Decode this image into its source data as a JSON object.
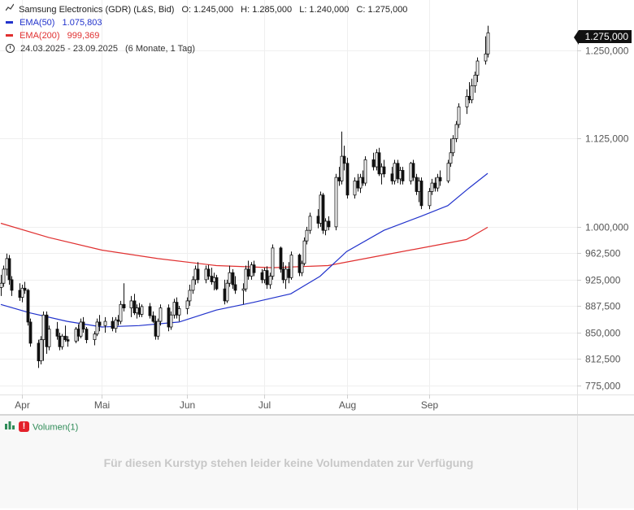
{
  "instrument": "Samsung Electronics (GDR) (L&S, Bid)",
  "ohlc": {
    "open": "O: 1.245,000",
    "high": "H: 1.285,000",
    "low": "L: 1.240,000",
    "close": "C: 1.275,000"
  },
  "ema50": {
    "label": "EMA(50)",
    "value": "1.075,803",
    "color": "#2233cc"
  },
  "ema200": {
    "label": "EMA(200)",
    "value": "999,369",
    "color": "#e03030"
  },
  "period": {
    "range": "24.03.2025 - 23.09.2025",
    "detail": "(6 Monate, 1 Tag)"
  },
  "last_price_tag": "1.275,000",
  "volume_panel": {
    "label": "Volumen(1)",
    "message": "Für diesen Kurstyp stehen leider keine Volumendaten zur Verfügung"
  },
  "chart_data": {
    "type": "candlestick",
    "y_axis": {
      "min": 760000,
      "max": 1300000,
      "ticks": [
        "1.250,000",
        "1.125,000",
        "1.000,000",
        "962,500",
        "925,000",
        "887,500",
        "850,000",
        "812,500",
        "775,000"
      ],
      "tick_values": [
        1250000,
        1125000,
        1000000,
        962500,
        925000,
        887500,
        850000,
        812500,
        775000
      ]
    },
    "x_axis": {
      "ticks": [
        "Apr",
        "Mai",
        "Jun",
        "Jul",
        "Aug",
        "Sep"
      ],
      "tick_dates": [
        "2025-04-01",
        "2025-05-01",
        "2025-06-02",
        "2025-07-01",
        "2025-08-01",
        "2025-09-01"
      ],
      "start": "2025-03-24",
      "end": "2025-09-23"
    },
    "candles": [
      [
        "2025-03-24",
        914000,
        932000,
        902000,
        920000
      ],
      [
        "2025-03-25",
        920000,
        945000,
        915000,
        940000
      ],
      [
        "2025-03-26",
        940000,
        962000,
        931000,
        955000
      ],
      [
        "2025-03-27",
        955000,
        960000,
        918000,
        925000
      ],
      [
        "2025-03-28",
        925000,
        930000,
        902000,
        910000
      ],
      [
        "2025-03-31",
        910000,
        920000,
        895000,
        900000
      ],
      [
        "2025-04-01",
        900000,
        918000,
        893000,
        913000
      ],
      [
        "2025-04-02",
        913000,
        922000,
        905000,
        910000
      ],
      [
        "2025-04-03",
        910000,
        912000,
        860000,
        865000
      ],
      [
        "2025-04-04",
        865000,
        870000,
        830000,
        835000
      ],
      [
        "2025-04-07",
        835000,
        840000,
        800000,
        810000
      ],
      [
        "2025-04-08",
        810000,
        845000,
        805000,
        840000
      ],
      [
        "2025-04-09",
        840000,
        880000,
        810000,
        875000
      ],
      [
        "2025-04-10",
        875000,
        880000,
        820000,
        830000
      ],
      [
        "2025-04-11",
        830000,
        860000,
        825000,
        855000
      ],
      [
        "2025-04-14",
        855000,
        865000,
        840000,
        845000
      ],
      [
        "2025-04-15",
        845000,
        850000,
        825000,
        830000
      ],
      [
        "2025-04-16",
        830000,
        848000,
        826000,
        845000
      ],
      [
        "2025-04-17",
        845000,
        860000,
        837000,
        840000
      ],
      [
        "2025-04-18",
        840000,
        845000,
        830000,
        838000
      ],
      [
        "2025-04-21",
        838000,
        858000,
        835000,
        855000
      ],
      [
        "2025-04-22",
        855000,
        862000,
        838000,
        845000
      ],
      [
        "2025-04-23",
        845000,
        870000,
        842000,
        865000
      ],
      [
        "2025-04-24",
        865000,
        872000,
        850000,
        855000
      ],
      [
        "2025-04-25",
        855000,
        858000,
        835000,
        840000
      ],
      [
        "2025-04-28",
        840000,
        852000,
        832000,
        848000
      ],
      [
        "2025-04-29",
        848000,
        870000,
        845000,
        865000
      ],
      [
        "2025-04-30",
        865000,
        875000,
        852000,
        860000
      ],
      [
        "2025-05-02",
        860000,
        872000,
        850000,
        866000
      ],
      [
        "2025-05-05",
        866000,
        872000,
        852000,
        856000
      ],
      [
        "2025-05-06",
        856000,
        872000,
        850000,
        868000
      ],
      [
        "2025-05-07",
        868000,
        875000,
        860000,
        866000
      ],
      [
        "2025-05-08",
        866000,
        895000,
        862000,
        890000
      ],
      [
        "2025-05-09",
        890000,
        920000,
        880000,
        885000
      ],
      [
        "2025-05-12",
        885000,
        902000,
        872000,
        895000
      ],
      [
        "2025-05-13",
        895000,
        905000,
        875000,
        878000
      ],
      [
        "2025-05-14",
        878000,
        890000,
        870000,
        885000
      ],
      [
        "2025-05-15",
        885000,
        892000,
        872000,
        876000
      ],
      [
        "2025-05-16",
        876000,
        890000,
        872000,
        887000
      ],
      [
        "2025-05-19",
        887000,
        892000,
        870000,
        874000
      ],
      [
        "2025-05-20",
        874000,
        880000,
        864000,
        866000
      ],
      [
        "2025-05-21",
        866000,
        874000,
        840000,
        845000
      ],
      [
        "2025-05-22",
        845000,
        870000,
        840000,
        866000
      ],
      [
        "2025-05-23",
        866000,
        890000,
        860000,
        885000
      ],
      [
        "2025-05-26",
        885000,
        890000,
        852000,
        858000
      ],
      [
        "2025-05-27",
        858000,
        880000,
        854000,
        875000
      ],
      [
        "2025-05-28",
        875000,
        898000,
        870000,
        893000
      ],
      [
        "2025-05-29",
        893000,
        900000,
        870000,
        875000
      ],
      [
        "2025-05-30",
        875000,
        888000,
        866000,
        884000
      ],
      [
        "2025-06-02",
        884000,
        900000,
        876000,
        895000
      ],
      [
        "2025-06-03",
        895000,
        918000,
        888000,
        910000
      ],
      [
        "2025-06-04",
        910000,
        930000,
        905000,
        925000
      ],
      [
        "2025-06-05",
        925000,
        945000,
        918000,
        940000
      ],
      [
        "2025-06-06",
        940000,
        950000,
        920000,
        925000
      ],
      [
        "2025-06-09",
        925000,
        945000,
        920000,
        940000
      ],
      [
        "2025-06-10",
        940000,
        946000,
        925000,
        930000
      ],
      [
        "2025-06-11",
        930000,
        942000,
        918000,
        922000
      ],
      [
        "2025-06-12",
        922000,
        935000,
        910000,
        928000
      ],
      [
        "2025-06-13",
        928000,
        932000,
        910000,
        912000
      ],
      [
        "2025-06-16",
        912000,
        925000,
        890000,
        895000
      ],
      [
        "2025-06-17",
        895000,
        925000,
        892000,
        920000
      ],
      [
        "2025-06-18",
        920000,
        945000,
        915000,
        935000
      ],
      [
        "2025-06-19",
        935000,
        940000,
        912000,
        918000
      ],
      [
        "2025-06-20",
        918000,
        930000,
        905000,
        910000
      ],
      [
        "2025-06-23",
        910000,
        920000,
        890000,
        912000
      ],
      [
        "2025-06-24",
        912000,
        945000,
        908000,
        940000
      ],
      [
        "2025-06-25",
        940000,
        952000,
        925000,
        930000
      ],
      [
        "2025-06-26",
        930000,
        950000,
        925000,
        946000
      ],
      [
        "2025-06-27",
        946000,
        952000,
        930000,
        935000
      ],
      [
        "2025-06-30",
        935000,
        940000,
        920000,
        925000
      ],
      [
        "2025-07-01",
        925000,
        942000,
        920000,
        938000
      ],
      [
        "2025-07-02",
        938000,
        944000,
        912000,
        918000
      ],
      [
        "2025-07-03",
        918000,
        935000,
        912000,
        930000
      ],
      [
        "2025-07-04",
        930000,
        975000,
        925000,
        970000
      ],
      [
        "2025-07-07",
        970000,
        972000,
        935000,
        940000
      ],
      [
        "2025-07-08",
        940000,
        950000,
        920000,
        925000
      ],
      [
        "2025-07-09",
        925000,
        945000,
        912000,
        940000
      ],
      [
        "2025-07-10",
        940000,
        950000,
        920000,
        928000
      ],
      [
        "2025-07-11",
        928000,
        965000,
        925000,
        960000
      ],
      [
        "2025-07-14",
        960000,
        962000,
        930000,
        935000
      ],
      [
        "2025-07-15",
        935000,
        952000,
        930000,
        948000
      ],
      [
        "2025-07-16",
        948000,
        985000,
        945000,
        980000
      ],
      [
        "2025-07-17",
        980000,
        1000000,
        975000,
        995000
      ],
      [
        "2025-07-18",
        995000,
        1020000,
        990000,
        1015000
      ],
      [
        "2025-07-21",
        1015000,
        1025000,
        998000,
        1005000
      ],
      [
        "2025-07-22",
        1005000,
        1050000,
        1000000,
        1045000
      ],
      [
        "2025-07-23",
        1045000,
        1048000,
        990000,
        995000
      ],
      [
        "2025-07-24",
        995000,
        1012000,
        988000,
        1008000
      ],
      [
        "2025-07-25",
        1008000,
        1015000,
        995000,
        1000000
      ],
      [
        "2025-07-28",
        1000000,
        1075000,
        995000,
        1070000
      ],
      [
        "2025-07-29",
        1070000,
        1085000,
        1058000,
        1065000
      ],
      [
        "2025-07-30",
        1065000,
        1135000,
        1060000,
        1100000
      ],
      [
        "2025-07-31",
        1100000,
        1115000,
        1080000,
        1090000
      ],
      [
        "2025-08-01",
        1090000,
        1098000,
        1040000,
        1045000
      ],
      [
        "2025-08-04",
        1045000,
        1070000,
        1040000,
        1065000
      ],
      [
        "2025-08-05",
        1065000,
        1075000,
        1050000,
        1055000
      ],
      [
        "2025-08-06",
        1055000,
        1075000,
        1048000,
        1070000
      ],
      [
        "2025-08-07",
        1070000,
        1080000,
        1058000,
        1062000
      ],
      [
        "2025-08-08",
        1062000,
        1100000,
        1058000,
        1095000
      ],
      [
        "2025-08-11",
        1095000,
        1105000,
        1080000,
        1085000
      ],
      [
        "2025-08-12",
        1085000,
        1110000,
        1080000,
        1105000
      ],
      [
        "2025-08-13",
        1105000,
        1112000,
        1072000,
        1075000
      ],
      [
        "2025-08-14",
        1075000,
        1090000,
        1060000,
        1085000
      ],
      [
        "2025-08-15",
        1085000,
        1095000,
        1070000,
        1075000
      ],
      [
        "2025-08-18",
        1075000,
        1085000,
        1060000,
        1065000
      ],
      [
        "2025-08-19",
        1065000,
        1095000,
        1060000,
        1090000
      ],
      [
        "2025-08-20",
        1090000,
        1095000,
        1062000,
        1068000
      ],
      [
        "2025-08-21",
        1068000,
        1085000,
        1060000,
        1080000
      ],
      [
        "2025-08-22",
        1080000,
        1085000,
        1060000,
        1065000
      ],
      [
        "2025-08-25",
        1065000,
        1092000,
        1060000,
        1090000
      ],
      [
        "2025-08-26",
        1090000,
        1095000,
        1065000,
        1070000
      ],
      [
        "2025-08-27",
        1070000,
        1075000,
        1045000,
        1050000
      ],
      [
        "2025-08-28",
        1050000,
        1070000,
        1035000,
        1065000
      ],
      [
        "2025-08-29",
        1065000,
        1070000,
        1025000,
        1030000
      ],
      [
        "2025-09-01",
        1030000,
        1055000,
        1025000,
        1050000
      ],
      [
        "2025-09-02",
        1050000,
        1068000,
        1045000,
        1062000
      ],
      [
        "2025-09-03",
        1062000,
        1070000,
        1050000,
        1055000
      ],
      [
        "2025-09-04",
        1055000,
        1075000,
        1050000,
        1070000
      ],
      [
        "2025-09-05",
        1070000,
        1080000,
        1058000,
        1065000
      ],
      [
        "2025-09-08",
        1065000,
        1095000,
        1062000,
        1090000
      ],
      [
        "2025-09-09",
        1090000,
        1125000,
        1085000,
        1105000
      ],
      [
        "2025-09-10",
        1105000,
        1130000,
        1100000,
        1125000
      ],
      [
        "2025-09-11",
        1125000,
        1150000,
        1120000,
        1145000
      ],
      [
        "2025-09-12",
        1145000,
        1175000,
        1140000,
        1170000
      ],
      [
        "2025-09-15",
        1170000,
        1195000,
        1160000,
        1185000
      ],
      [
        "2025-09-16",
        1185000,
        1205000,
        1175000,
        1180000
      ],
      [
        "2025-09-17",
        1180000,
        1210000,
        1175000,
        1200000
      ],
      [
        "2025-09-18",
        1200000,
        1220000,
        1190000,
        1215000
      ],
      [
        "2025-09-19",
        1215000,
        1240000,
        1205000,
        1235000
      ],
      [
        "2025-09-22",
        1235000,
        1270000,
        1230000,
        1245000
      ],
      [
        "2025-09-23",
        1245000,
        1285000,
        1240000,
        1275000
      ]
    ],
    "ema50_points": [
      [
        "2025-03-24",
        890000
      ],
      [
        "2025-04-04",
        878000
      ],
      [
        "2025-04-18",
        866000
      ],
      [
        "2025-05-01",
        858000
      ],
      [
        "2025-05-15",
        860000
      ],
      [
        "2025-05-30",
        865000
      ],
      [
        "2025-06-13",
        882000
      ],
      [
        "2025-06-27",
        893000
      ],
      [
        "2025-07-11",
        905000
      ],
      [
        "2025-07-22",
        930000
      ],
      [
        "2025-08-01",
        965000
      ],
      [
        "2025-08-15",
        995000
      ],
      [
        "2025-08-29",
        1015000
      ],
      [
        "2025-09-08",
        1030000
      ],
      [
        "2025-09-16",
        1055000
      ],
      [
        "2025-09-23",
        1075803
      ]
    ],
    "ema200_points": [
      [
        "2025-03-24",
        1005000
      ],
      [
        "2025-04-11",
        985000
      ],
      [
        "2025-05-01",
        967000
      ],
      [
        "2025-05-22",
        955000
      ],
      [
        "2025-06-13",
        945000
      ],
      [
        "2025-07-04",
        942000
      ],
      [
        "2025-07-25",
        945000
      ],
      [
        "2025-08-15",
        960000
      ],
      [
        "2025-09-01",
        972000
      ],
      [
        "2025-09-15",
        982000
      ],
      [
        "2025-09-23",
        999369
      ]
    ]
  }
}
